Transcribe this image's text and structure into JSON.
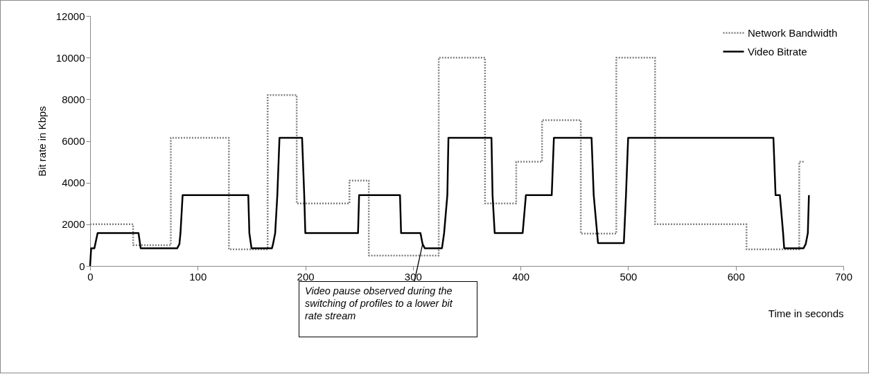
{
  "chart_data": {
    "type": "line",
    "xlabel": "Time in seconds",
    "ylabel": "Bit rate  in Kbps",
    "xlim": [
      0,
      700
    ],
    "xticks": [
      0,
      100,
      200,
      300,
      400,
      500,
      600,
      700
    ],
    "ylim": [
      0,
      12000
    ],
    "yticks": [
      0,
      2000,
      4000,
      6000,
      8000,
      10000,
      12000
    ],
    "grid": false,
    "legend": "top right",
    "series": [
      {
        "name": "Network Bandwidth",
        "color": "#808080",
        "line_style": "dotted",
        "x": [
          0,
          40,
          40,
          75,
          75,
          129,
          129,
          165,
          165,
          192,
          192,
          241,
          241,
          259,
          259,
          324,
          324,
          367,
          367,
          396,
          396,
          420,
          420,
          456,
          456,
          489,
          489,
          525,
          525,
          610,
          610,
          659,
          659,
          664
        ],
        "values": [
          2000,
          2000,
          1000,
          1000,
          6150,
          6150,
          800,
          800,
          8200,
          8200,
          3000,
          3000,
          4100,
          4100,
          500,
          500,
          10000,
          10000,
          3000,
          3000,
          5000,
          5000,
          7000,
          7000,
          1550,
          1550,
          10000,
          10000,
          2000,
          2000,
          800,
          800,
          5000,
          5000
        ]
      },
      {
        "name": "Video Bitrate",
        "color": "#000000",
        "line_style": "solid",
        "x": [
          0,
          1,
          4,
          7,
          45,
          47,
          81,
          83,
          84,
          86,
          147,
          148,
          150,
          169,
          170,
          172,
          174,
          176,
          197,
          199,
          200,
          249,
          250,
          288,
          289,
          307,
          309,
          311,
          327,
          329,
          332,
          333,
          373,
          374,
          376,
          402,
          405,
          429,
          431,
          466,
          468,
          472,
          496,
          498,
          500,
          635,
          637,
          641,
          644,
          645,
          663,
          665,
          667,
          668
        ],
        "values": [
          0,
          850,
          850,
          1580,
          1580,
          850,
          850,
          1050,
          1580,
          3400,
          3400,
          1580,
          850,
          850,
          1050,
          1580,
          3400,
          6150,
          6150,
          3400,
          1580,
          1580,
          3400,
          3400,
          1580,
          1580,
          1050,
          850,
          850,
          1580,
          3400,
          6150,
          6150,
          3400,
          1580,
          1580,
          3400,
          3400,
          6150,
          6150,
          3400,
          1100,
          1100,
          3400,
          6150,
          6150,
          3400,
          3400,
          1580,
          850,
          850,
          1050,
          1580,
          3400
        ]
      }
    ],
    "annotations": [
      {
        "text": "Video pause observed during the switching of profiles to a lower bit rate stream",
        "x": 309,
        "y": 1050
      }
    ]
  }
}
